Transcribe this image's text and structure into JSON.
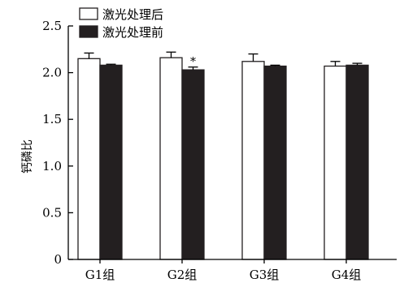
{
  "chart_data": {
    "type": "bar",
    "title": "",
    "xlabel": "",
    "ylabel": "钙磷比",
    "ylim": [
      0,
      2.5
    ],
    "yticks": [
      0,
      0.5,
      1.0,
      1.5,
      2.0,
      2.5
    ],
    "ytick_labels": [
      "0",
      "0.5",
      "1.0",
      "1.5",
      "2.0",
      "2.5"
    ],
    "grid": false,
    "legend_position": "top-left",
    "categories": [
      "G1组",
      "G2组",
      "G3组",
      "G4组"
    ],
    "series": [
      {
        "name": "激光处理后",
        "color": "#ffffff",
        "values": [
          2.15,
          2.16,
          2.12,
          2.07
        ],
        "errors": [
          0.06,
          0.06,
          0.08,
          0.05
        ]
      },
      {
        "name": "激光处理前",
        "color": "#231f20",
        "values": [
          2.08,
          2.03,
          2.07,
          2.08
        ],
        "errors": [
          0.01,
          0.03,
          0.01,
          0.02
        ]
      }
    ],
    "annotations": [
      {
        "text": "*",
        "category": "G2组",
        "series": "激光处理前"
      }
    ]
  }
}
